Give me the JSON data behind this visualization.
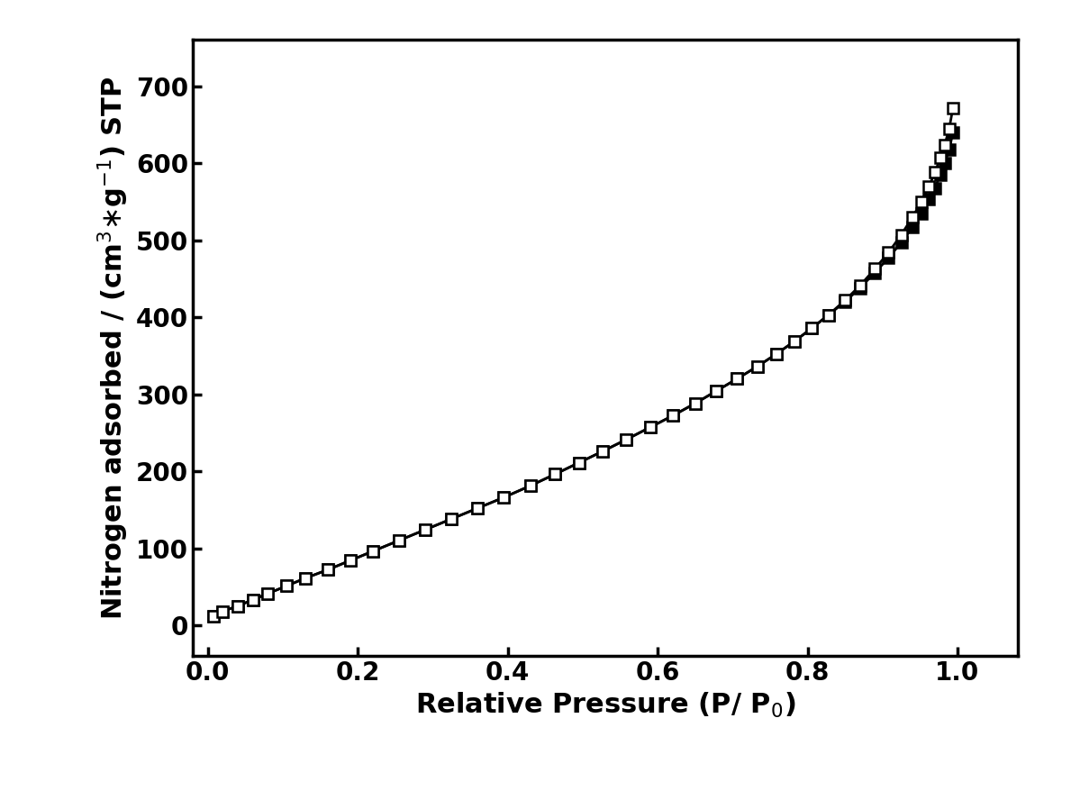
{
  "adsorption_x": [
    0.008,
    0.02,
    0.04,
    0.06,
    0.08,
    0.105,
    0.13,
    0.16,
    0.19,
    0.22,
    0.255,
    0.29,
    0.325,
    0.36,
    0.395,
    0.43,
    0.463,
    0.495,
    0.527,
    0.558,
    0.59,
    0.62,
    0.65,
    0.678,
    0.706,
    0.733,
    0.758,
    0.783,
    0.806,
    0.828,
    0.85,
    0.87,
    0.89,
    0.908,
    0.925,
    0.94,
    0.952,
    0.962,
    0.97,
    0.977,
    0.983,
    0.989,
    0.994
  ],
  "adsorption_y": [
    12,
    18,
    25,
    33,
    41,
    51,
    61,
    72,
    84,
    96,
    110,
    124,
    138,
    152,
    166,
    181,
    196,
    211,
    226,
    241,
    257,
    272,
    288,
    304,
    320,
    336,
    352,
    369,
    386,
    403,
    422,
    441,
    463,
    484,
    507,
    530,
    550,
    570,
    588,
    607,
    624,
    645,
    672
  ],
  "desorption_x": [
    0.008,
    0.02,
    0.04,
    0.06,
    0.08,
    0.105,
    0.13,
    0.16,
    0.19,
    0.22,
    0.255,
    0.29,
    0.325,
    0.36,
    0.395,
    0.43,
    0.463,
    0.495,
    0.527,
    0.558,
    0.59,
    0.62,
    0.65,
    0.678,
    0.706,
    0.733,
    0.758,
    0.783,
    0.806,
    0.828,
    0.85,
    0.87,
    0.89,
    0.908,
    0.925,
    0.94,
    0.952,
    0.962,
    0.97,
    0.977,
    0.983,
    0.989,
    0.994
  ],
  "desorption_y": [
    12,
    18,
    25,
    33,
    41,
    51,
    61,
    72,
    84,
    96,
    110,
    124,
    138,
    152,
    166,
    181,
    196,
    211,
    226,
    241,
    257,
    272,
    288,
    304,
    320,
    336,
    352,
    369,
    386,
    403,
    420,
    438,
    458,
    477,
    497,
    517,
    535,
    553,
    568,
    585,
    600,
    618,
    640
  ],
  "xlabel": "Relative Pressure (P/ P$_0$)",
  "ylabel": "Nitrogen adsorbed / (cm$^3$$\\ast$g$^{-1}$) STP",
  "xlim": [
    -0.02,
    1.08
  ],
  "ylim": [
    -40,
    760
  ],
  "xticks": [
    0.0,
    0.2,
    0.4,
    0.6,
    0.8,
    1.0
  ],
  "yticks": [
    0,
    100,
    200,
    300,
    400,
    500,
    600,
    700
  ],
  "line_color": "#000000",
  "markersize": 9,
  "linewidth": 2.0,
  "background_color": "#ffffff",
  "label_fontsize": 22,
  "tick_fontsize": 20
}
